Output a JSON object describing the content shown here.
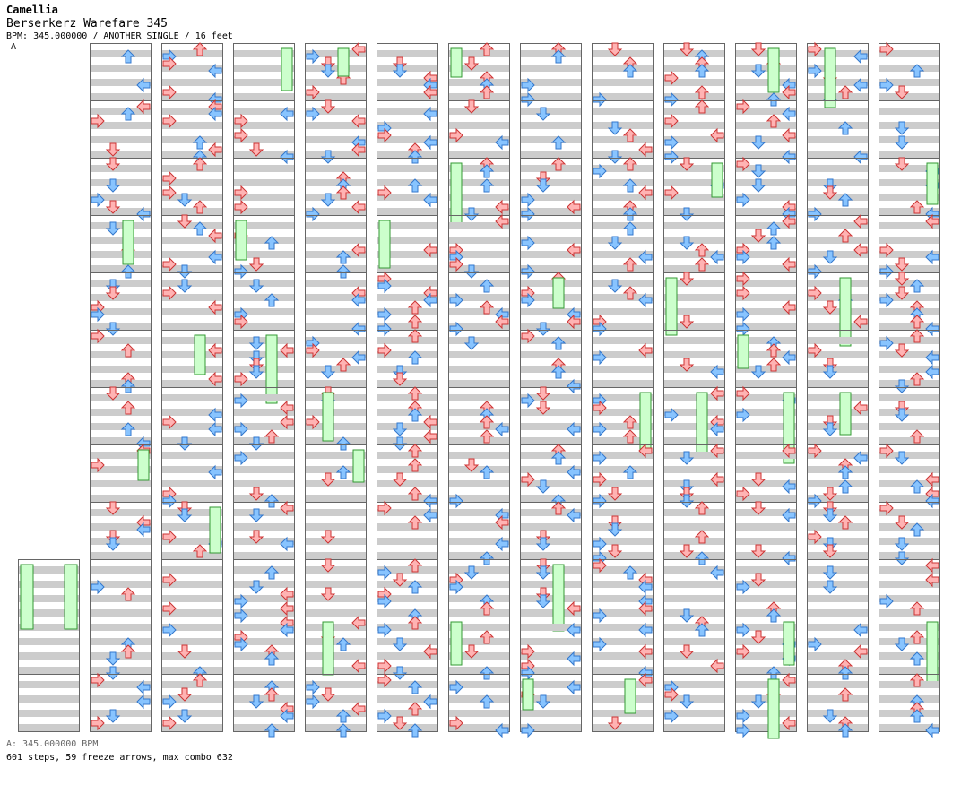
{
  "artist": "Camellia",
  "title": "Berserkerz Warefare 345",
  "info": "BPM: 345.000000 / ANOTHER SINGLE / 16 feet",
  "marker": "A",
  "bpm_line": "A: 345.000000 BPM",
  "stats": "601 steps, 59 freeze arrows, max combo 632",
  "colors": {
    "background": "#ffffff",
    "row_stripe": "#cccccc",
    "lane_border": "#666666",
    "red_arrow_fill": "#ffb3b3",
    "red_arrow_stroke": "#cc3333",
    "blue_arrow_fill": "#88c4ff",
    "blue_arrow_stroke": "#3377cc",
    "freeze_fill": "#ccffcc",
    "freeze_stroke": "#339933",
    "green_arrow_fill": "#66ee66",
    "pink_arrow_fill": "#ffccff"
  },
  "icons": {
    "note": "arrow-icon",
    "freeze": "freeze-arrow-icon"
  }
}
